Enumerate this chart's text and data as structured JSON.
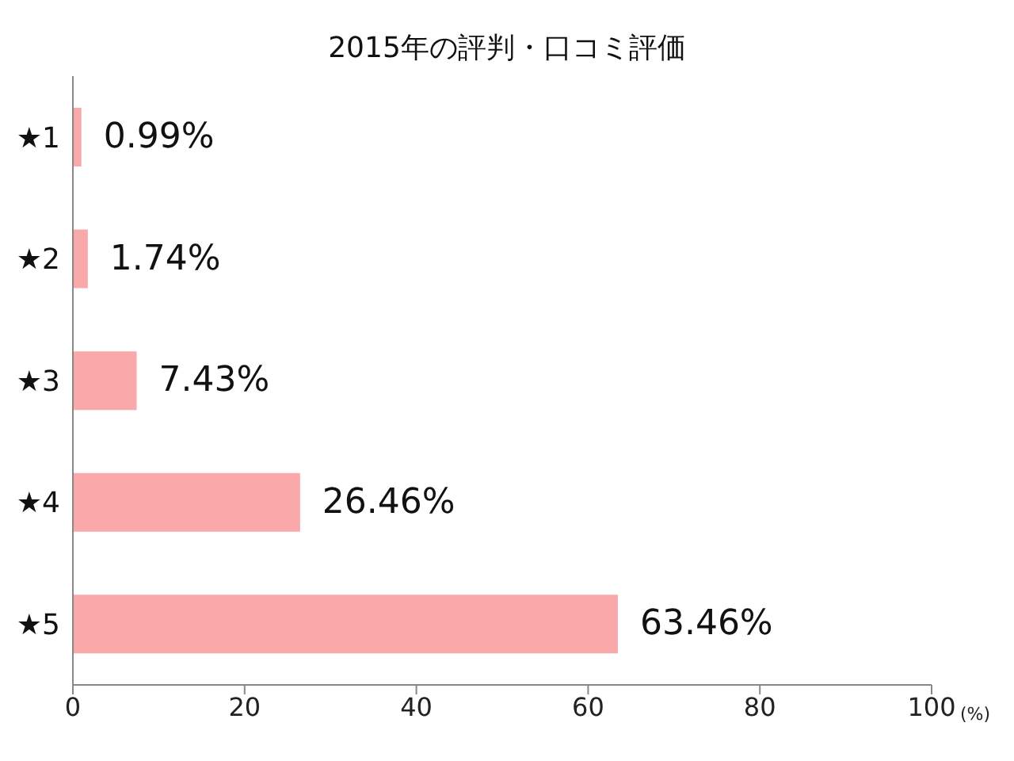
{
  "chart_data": {
    "type": "bar",
    "orientation": "horizontal",
    "title": "2015年の評判・口コミ評価",
    "xlabel": "(%)",
    "categories": [
      "★1",
      "★2",
      "★3",
      "★4",
      "★5"
    ],
    "values": [
      0.99,
      1.74,
      7.43,
      26.46,
      63.46
    ],
    "value_labels": [
      "0.99%",
      "1.74%",
      "7.43%",
      "26.46%",
      "63.46%"
    ],
    "color": "#f9a9a9",
    "xlim": [
      0,
      100
    ],
    "xticks": [
      0,
      20,
      40,
      60,
      80,
      100
    ],
    "grid": false
  }
}
